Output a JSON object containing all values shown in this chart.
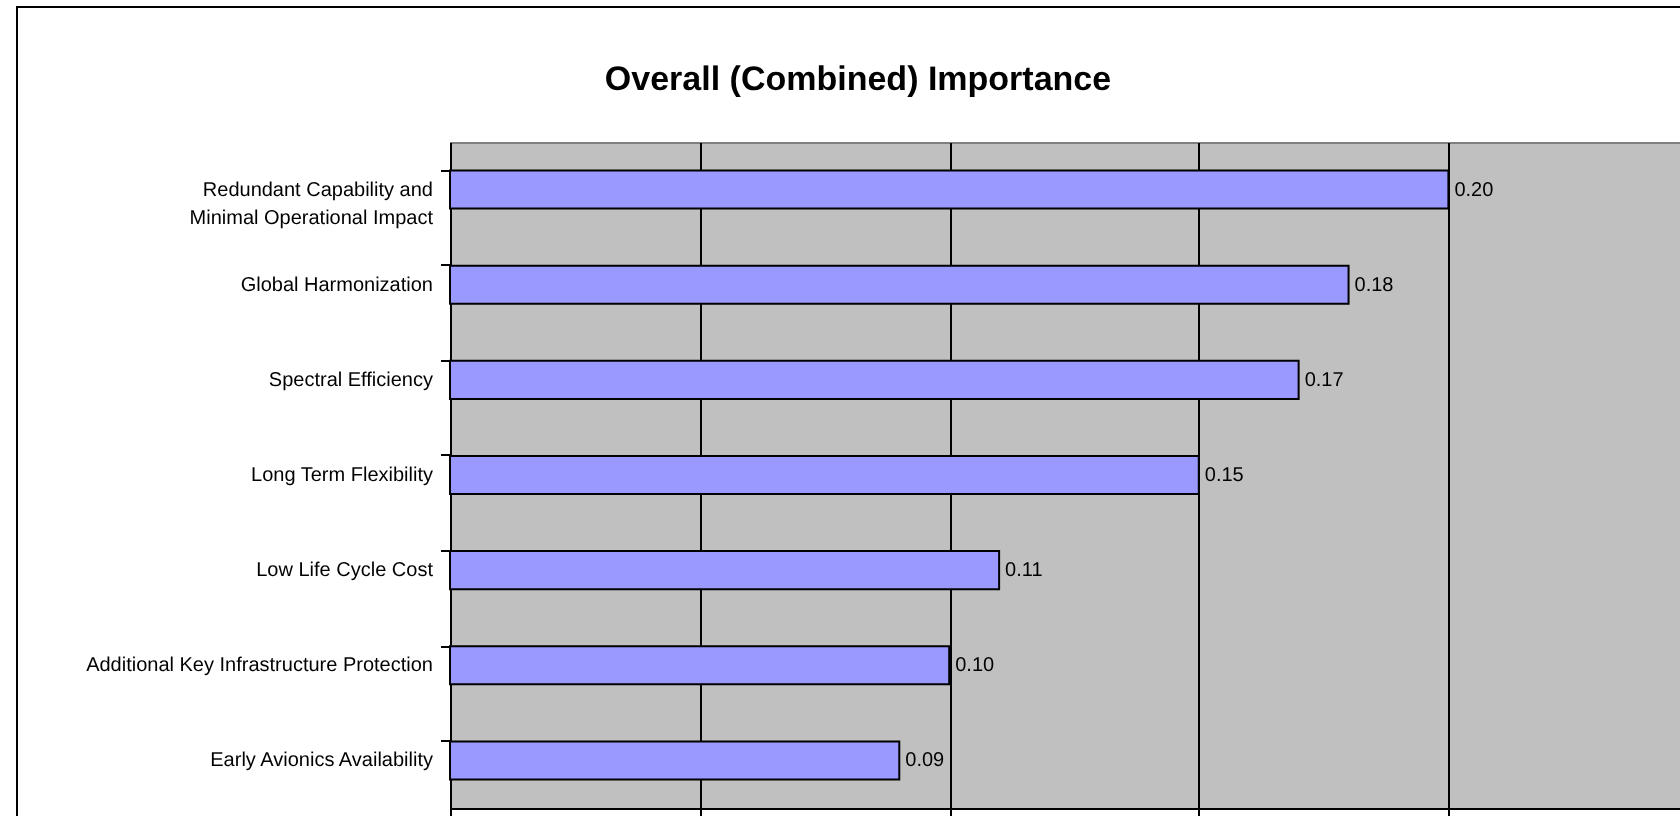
{
  "chart_data": {
    "type": "bar",
    "orientation": "horizontal",
    "title": "Overall (Combined) Importance",
    "categories": [
      "Redundant Capability and Minimal Operational Impact",
      "Global Harmonization",
      "Spectral Efficiency",
      "Long Term Flexibility",
      "Low Life Cycle Cost",
      "Additional Key Infrastructure Protection",
      "Early Avionics Availability"
    ],
    "values": [
      0.2,
      0.18,
      0.17,
      0.15,
      0.11,
      0.1,
      0.09
    ],
    "color": "#9999ff",
    "xlim": [
      0,
      0.25
    ],
    "xticks": [
      {
        "value": 0,
        "label": null
      },
      {
        "value": 0.05,
        "label": null
      },
      {
        "value": 0.1,
        "label": null
      },
      {
        "value": 0.15,
        "label": null
      },
      {
        "value": 0.2,
        "label": null
      }
    ],
    "value_labels": [
      "0.20",
      "0.18",
      "0.17",
      "0.15",
      "0.11",
      "0.10",
      "0.09"
    ],
    "tick_labels": "y",
    "grid": "x"
  }
}
